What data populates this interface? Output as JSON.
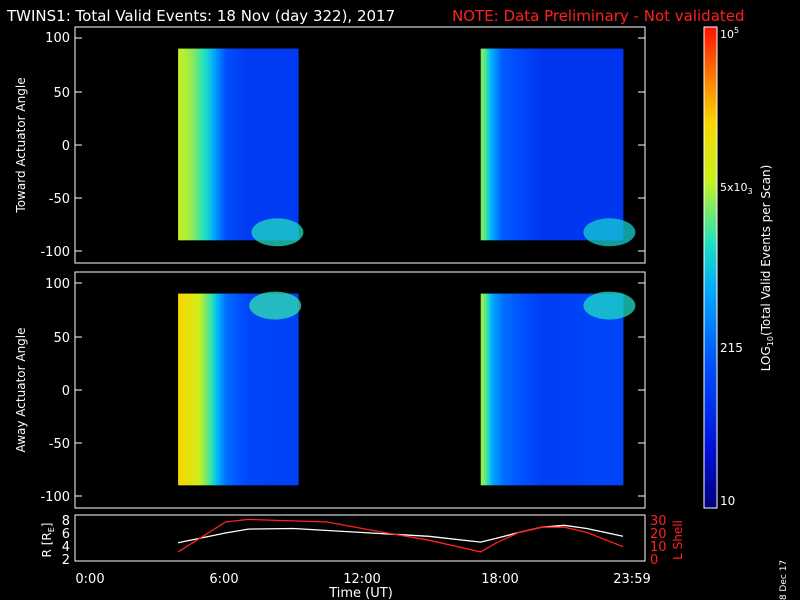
{
  "header": {
    "title": "TWINS1: Total Valid Events: 18 Nov (day 322), 2017",
    "note": "NOTE: Data Preliminary - Not validated"
  },
  "colors": {
    "background": "#000000",
    "note": "#ff2020",
    "lshell_line": "#ff2020",
    "r_line": "#ffffff"
  },
  "colorbar": {
    "label": "LOG10(Total Valid Events per Scan)",
    "label_parts": [
      "LOG",
      "10",
      "(Total Valid Events per Scan)"
    ],
    "ticks": [
      {
        "label": "10",
        "value": 10
      },
      {
        "label": "215",
        "value": 215
      },
      {
        "label": "5x10^3",
        "value": 5000
      },
      {
        "label": "10^5",
        "value": 100000
      }
    ],
    "tick_labels": {
      "t10": "10",
      "t215": "215",
      "t5e3_base": "5x10",
      "t5e3_exp": "3",
      "t1e5_base": "10",
      "t1e5_exp": "5"
    }
  },
  "footer": {
    "xlabel": "Time (UT)",
    "date_stamp": "8 Dec 17",
    "x_ticks": [
      "0:00",
      "6:00",
      "12:00",
      "18:00",
      "23:59"
    ]
  },
  "panels": {
    "top": {
      "ylabel": "Toward Actuator Angle",
      "y_ticks": [
        "100",
        "50",
        "0",
        "-50",
        "-100"
      ]
    },
    "middle": {
      "ylabel": "Away Actuator Angle",
      "y_ticks": [
        "100",
        "50",
        "0",
        "-50",
        "-100"
      ]
    },
    "bottom": {
      "ylabel_left": "R [RE]",
      "ylabel_left_parts": [
        "R [R",
        "E",
        "]"
      ],
      "ylabel_right": "L Shell",
      "left_ticks": [
        "8",
        "6",
        "4",
        "2"
      ],
      "right_ticks": [
        "30",
        "20",
        "10",
        "0"
      ]
    }
  },
  "chart_data": [
    {
      "type": "heatmap",
      "title": "Toward Actuator Angle",
      "ylabel": "Toward Actuator Angle",
      "xlabel": "Time (UT)",
      "xlim": [
        0,
        24
      ],
      "ylim": [
        -110,
        110
      ],
      "scale": "log",
      "value_range": [
        10,
        100000
      ],
      "data_blocks": [
        {
          "t_start": 3.9,
          "t_end": 9.2,
          "angle_min": -90,
          "angle_max": 90,
          "columns": [
            {
              "t": 4.0,
              "value": 5000
            },
            {
              "t": 4.5,
              "value": 3500
            },
            {
              "t": 5.2,
              "value": 1200
            },
            {
              "t": 6.0,
              "value": 150
            },
            {
              "t": 7.0,
              "value": 90
            },
            {
              "t": 8.5,
              "value": 90
            }
          ],
          "corner_enhancement": {
            "t": 8.3,
            "angle": -80,
            "value": 1500
          }
        },
        {
          "t_start": 17.3,
          "t_end": 23.6,
          "angle_min": -90,
          "angle_max": 90,
          "columns": [
            {
              "t": 17.4,
              "value": 3000
            },
            {
              "t": 17.7,
              "value": 800
            },
            {
              "t": 18.2,
              "value": 200
            },
            {
              "t": 20.0,
              "value": 80
            },
            {
              "t": 22.5,
              "value": 80
            }
          ],
          "corner_enhancement": {
            "t": 23.0,
            "angle": -80,
            "value": 1200
          }
        }
      ]
    },
    {
      "type": "heatmap",
      "title": "Away Actuator Angle",
      "ylabel": "Away Actuator Angle",
      "xlabel": "Time (UT)",
      "xlim": [
        0,
        24
      ],
      "ylim": [
        -110,
        110
      ],
      "scale": "log",
      "value_range": [
        10,
        100000
      ],
      "data_blocks": [
        {
          "t_start": 3.9,
          "t_end": 9.2,
          "angle_min": -90,
          "angle_max": 90,
          "columns": [
            {
              "t": 4.0,
              "value": 15000
            },
            {
              "t": 4.6,
              "value": 8000
            },
            {
              "t": 5.3,
              "value": 2000
            },
            {
              "t": 6.0,
              "value": 250
            },
            {
              "t": 7.0,
              "value": 120
            },
            {
              "t": 8.5,
              "value": 110
            }
          ],
          "corner_enhancement": {
            "t": 8.2,
            "angle": 80,
            "value": 1800
          }
        },
        {
          "t_start": 17.3,
          "t_end": 23.6,
          "angle_min": -90,
          "angle_max": 90,
          "columns": [
            {
              "t": 17.4,
              "value": 3500
            },
            {
              "t": 17.8,
              "value": 600
            },
            {
              "t": 18.3,
              "value": 250
            },
            {
              "t": 20.0,
              "value": 100
            },
            {
              "t": 22.5,
              "value": 120
            }
          ],
          "corner_enhancement": {
            "t": 23.0,
            "angle": 80,
            "value": 1500
          }
        }
      ]
    },
    {
      "type": "line",
      "ylabel": "R [RE]",
      "y2label": "L Shell",
      "xlabel": "Time (UT)",
      "xlim": [
        0,
        24
      ],
      "ylim": [
        1.5,
        8.5
      ],
      "y2lim": [
        0,
        30
      ],
      "series": [
        {
          "name": "R [RE]",
          "axis": "left",
          "x": [
            3.9,
            5.0,
            6.0,
            7.0,
            9.0,
            11.0,
            13.0,
            15.0,
            17.3,
            18.0,
            19.0,
            20.0,
            21.0,
            22.0,
            23.6
          ],
          "y": [
            4.8,
            5.6,
            6.3,
            6.9,
            7.0,
            6.6,
            6.2,
            5.8,
            4.9,
            5.5,
            6.4,
            7.2,
            7.5,
            7.0,
            5.8
          ]
        },
        {
          "name": "L Shell",
          "axis": "right",
          "x": [
            3.9,
            5.0,
            6.0,
            7.0,
            10.5,
            13.0,
            15.0,
            17.3,
            18.0,
            19.0,
            20.0,
            21.0,
            22.0,
            23.6
          ],
          "y": [
            7,
            19,
            30,
            32,
            30,
            22,
            16,
            7,
            14,
            22,
            26,
            26,
            22,
            11
          ]
        }
      ]
    }
  ]
}
